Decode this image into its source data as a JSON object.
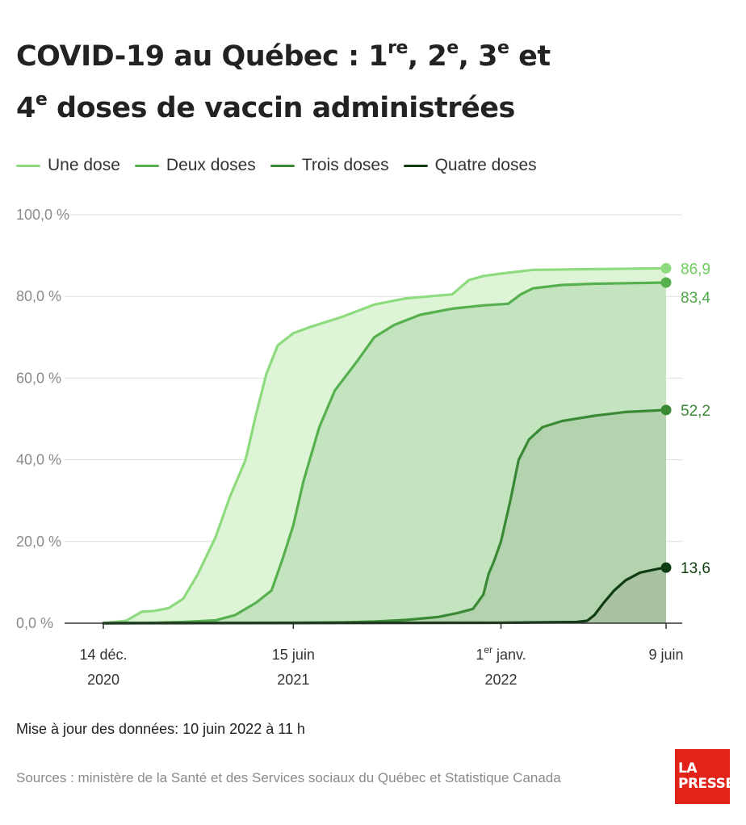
{
  "title": {
    "part1": "COVID-19 au Québec : 1",
    "sup1": "re",
    "part2": ", 2",
    "sup2": "e",
    "part3": ", 3",
    "sup3": "e",
    "part4": " et",
    "part5": "4",
    "sup5": "e",
    "part6": " doses de vaccin administrées"
  },
  "footer": {
    "update": "Mise à jour des données: 10 juin 2022 à 11 h",
    "source": "Sources : ministère de la Santé et des Services sociaux du Québec et Statistique Canada"
  },
  "logo": {
    "line1": "LA",
    "line2": "PRESSE"
  },
  "colors": {
    "une": "#8ddb7e",
    "deux": "#56b04e",
    "trois": "#3a8a35",
    "quatre": "#0f3d11",
    "grid": "#dddddd",
    "axis": "#333333"
  },
  "chart_data": {
    "type": "area",
    "x_axis": {
      "range": [
        "2020-12-14",
        "2022-06-09"
      ],
      "ticks": [
        {
          "date": "2020-12-14",
          "line1": "14 déc.",
          "line2": "2020"
        },
        {
          "date": "2021-06-15",
          "line1": "15 juin",
          "line2": "2021"
        },
        {
          "date": "2022-01-01",
          "line1": "1",
          "line1_sup": "er",
          "line1_rest": " janv.",
          "line2": "2022"
        },
        {
          "date": "2022-06-09",
          "line1": "9 juin",
          "line2": ""
        }
      ]
    },
    "y_axis": {
      "range": [
        0,
        100
      ],
      "ticks": [
        0,
        20,
        40,
        60,
        80,
        100
      ],
      "tick_labels": [
        "0,0 %",
        "20,0 %",
        "40,0 %",
        "60,0 %",
        "80,0 %",
        "100,0 %"
      ]
    },
    "grid": true,
    "legend_position": "top-left",
    "series": [
      {
        "name": "Une dose",
        "end_label": "86,9",
        "points": [
          [
            "2020-12-14",
            0
          ],
          [
            "2021-01-05",
            0.6
          ],
          [
            "2021-01-20",
            2.8
          ],
          [
            "2021-02-01",
            3.0
          ],
          [
            "2021-02-15",
            3.7
          ],
          [
            "2021-03-01",
            6
          ],
          [
            "2021-03-15",
            12
          ],
          [
            "2021-04-01",
            21
          ],
          [
            "2021-04-15",
            31
          ],
          [
            "2021-04-30",
            40
          ],
          [
            "2021-05-10",
            51
          ],
          [
            "2021-05-20",
            61
          ],
          [
            "2021-05-31",
            68
          ],
          [
            "2021-06-15",
            71
          ],
          [
            "2021-07-01",
            72.5
          ],
          [
            "2021-08-01",
            75
          ],
          [
            "2021-09-01",
            78
          ],
          [
            "2021-10-01",
            79.5
          ],
          [
            "2021-11-15",
            80.5
          ],
          [
            "2021-12-01",
            84
          ],
          [
            "2021-12-15",
            85
          ],
          [
            "2022-01-01",
            85.6
          ],
          [
            "2022-02-01",
            86.5
          ],
          [
            "2022-06-09",
            86.9
          ]
        ]
      },
      {
        "name": "Deux doses",
        "end_label": "83,4",
        "points": [
          [
            "2020-12-14",
            0
          ],
          [
            "2021-02-01",
            0.1
          ],
          [
            "2021-03-01",
            0.3
          ],
          [
            "2021-04-01",
            0.7
          ],
          [
            "2021-04-20",
            2
          ],
          [
            "2021-05-10",
            5
          ],
          [
            "2021-05-25",
            8
          ],
          [
            "2021-06-05",
            16
          ],
          [
            "2021-06-15",
            24
          ],
          [
            "2021-06-25",
            35
          ],
          [
            "2021-07-10",
            48
          ],
          [
            "2021-07-25",
            57
          ],
          [
            "2021-08-15",
            64
          ],
          [
            "2021-09-01",
            70
          ],
          [
            "2021-09-20",
            73
          ],
          [
            "2021-10-15",
            75.5
          ],
          [
            "2021-11-15",
            77
          ],
          [
            "2021-12-15",
            77.8
          ],
          [
            "2022-01-08",
            78.2
          ],
          [
            "2022-01-20",
            80.5
          ],
          [
            "2022-02-01",
            82
          ],
          [
            "2022-03-01",
            82.8
          ],
          [
            "2022-04-01",
            83.1
          ],
          [
            "2022-06-09",
            83.4
          ]
        ]
      },
      {
        "name": "Trois doses",
        "end_label": "52,2",
        "points": [
          [
            "2020-12-14",
            0
          ],
          [
            "2021-06-15",
            0.1
          ],
          [
            "2021-08-01",
            0.2
          ],
          [
            "2021-09-01",
            0.4
          ],
          [
            "2021-10-01",
            0.8
          ],
          [
            "2021-11-01",
            1.5
          ],
          [
            "2021-11-20",
            2.5
          ],
          [
            "2021-12-05",
            3.5
          ],
          [
            "2021-12-15",
            7
          ],
          [
            "2021-12-20",
            12
          ],
          [
            "2021-12-25",
            15
          ],
          [
            "2022-01-01",
            20
          ],
          [
            "2022-01-10",
            30
          ],
          [
            "2022-01-18",
            40
          ],
          [
            "2022-01-28",
            45
          ],
          [
            "2022-02-10",
            48
          ],
          [
            "2022-03-01",
            49.5
          ],
          [
            "2022-04-01",
            50.8
          ],
          [
            "2022-05-01",
            51.7
          ],
          [
            "2022-06-09",
            52.2
          ]
        ]
      },
      {
        "name": "Quatre doses",
        "end_label": "13,6",
        "points": [
          [
            "2020-12-14",
            0
          ],
          [
            "2022-01-01",
            0.1
          ],
          [
            "2022-03-15",
            0.3
          ],
          [
            "2022-03-25",
            0.6
          ],
          [
            "2022-04-01",
            2
          ],
          [
            "2022-04-10",
            5
          ],
          [
            "2022-04-20",
            8
          ],
          [
            "2022-05-01",
            10.5
          ],
          [
            "2022-05-15",
            12.4
          ],
          [
            "2022-06-01",
            13.3
          ],
          [
            "2022-06-09",
            13.6
          ]
        ]
      }
    ]
  }
}
